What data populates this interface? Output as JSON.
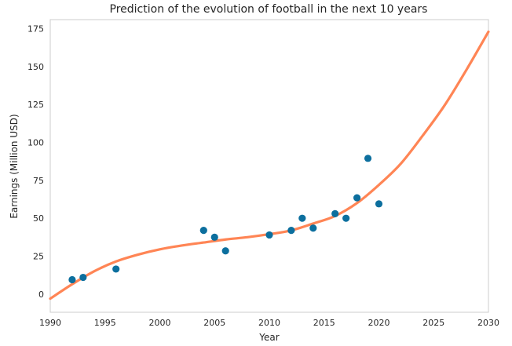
{
  "chart_data": {
    "type": "scatter",
    "title": "Prediction of the evolution of football in the next 10 years",
    "xlabel": "Year",
    "ylabel": "Earnings (Million USD)",
    "xlim": [
      1990,
      2030
    ],
    "ylim": [
      -12,
      181
    ],
    "xticks": [
      1990,
      1995,
      2000,
      2005,
      2010,
      2015,
      2020,
      2025,
      2030
    ],
    "yticks": [
      0,
      25,
      50,
      75,
      100,
      125,
      150,
      175
    ],
    "grid": false,
    "legend": "none",
    "series": [
      {
        "type": "scatter",
        "color": "#0c6f9e",
        "x": [
          1992,
          1993,
          1996,
          2004,
          2005,
          2006,
          2010,
          2012,
          2013,
          2014,
          2016,
          2017,
          2018,
          2019,
          2020
        ],
        "y": [
          9.5,
          11,
          16.5,
          42,
          37.5,
          28.5,
          39,
          42,
          50,
          43.5,
          53,
          50,
          63.5,
          89.5,
          59.5
        ]
      },
      {
        "type": "line",
        "color": "#ff8555",
        "x": [
          1990,
          1992,
          1994,
          1996,
          1998,
          2000,
          2002,
          2004,
          2006,
          2008,
          2010,
          2012,
          2014,
          2016,
          2018,
          2020,
          2022,
          2024,
          2026,
          2028,
          2030
        ],
        "y": [
          -3,
          6.5,
          15,
          21.5,
          26,
          29.5,
          32,
          34,
          36,
          37.5,
          39.5,
          42,
          46.5,
          51.5,
          60,
          72,
          86,
          104.5,
          124.5,
          148,
          173
        ]
      }
    ]
  }
}
